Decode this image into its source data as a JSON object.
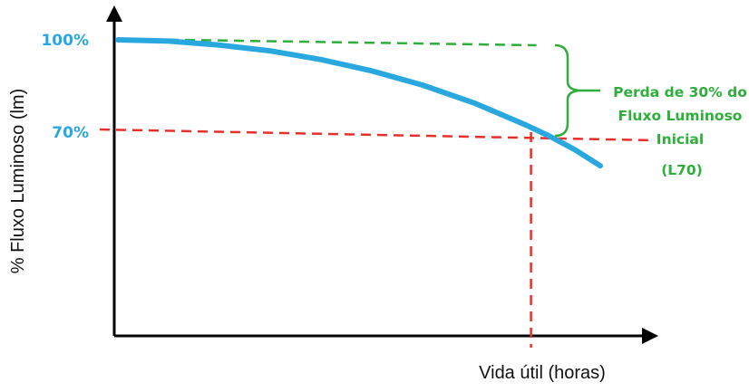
{
  "chart_data": {
    "type": "line",
    "title": "",
    "xlabel": "Vida útil (horas)",
    "ylabel": "% Fluxo Luminoso (lm)",
    "yticks": [
      {
        "label": "100%",
        "value": 100
      },
      {
        "label": "70%",
        "value": 70
      }
    ],
    "ylim": [
      0,
      100
    ],
    "xlim": [
      0,
      100
    ],
    "series": [
      {
        "x": [
          0,
          10,
          20,
          30,
          40,
          50,
          60,
          70,
          80,
          85,
          90,
          95
        ],
        "y": [
          100,
          99.6,
          98.3,
          96.4,
          93.6,
          89.9,
          85.3,
          79.6,
          72.6,
          68.7,
          64.3,
          59.1
        ]
      }
    ],
    "reference_lines": {
      "initial_level": 100,
      "threshold_level": 70,
      "threshold_x": 81
    },
    "annotations": {
      "loss_lines": [
        "Perda de 30% do",
        "Fluxo Luminoso",
        "Inicial"
      ],
      "l70": "(L70)"
    },
    "colors": {
      "curve": "#29a8e0",
      "tick_labels": "#29a8e0",
      "threshold_line": "#e8302b",
      "initial_line": "#2eae3a",
      "annotation": "#2eae3a",
      "axes": "#000000"
    }
  }
}
